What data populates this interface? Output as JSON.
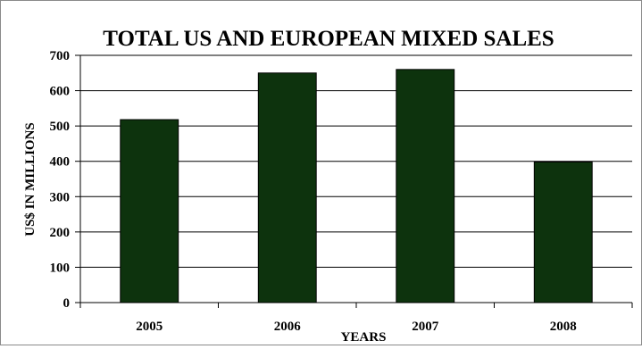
{
  "chart_data": {
    "type": "bar",
    "title": "TOTAL US AND EUROPEAN MIXED SALES",
    "xlabel": "YEARS",
    "ylabel": "US$ IN MILLIONS",
    "categories": [
      "2005",
      "2006",
      "2007",
      "2008"
    ],
    "values": [
      518,
      650,
      660,
      398
    ],
    "ylim": [
      0,
      700
    ],
    "yticks": [
      "0",
      "100",
      "200",
      "300",
      "400",
      "500",
      "600",
      "700"
    ],
    "grid": true,
    "legend": "none",
    "bar_color": "#0d330d"
  }
}
